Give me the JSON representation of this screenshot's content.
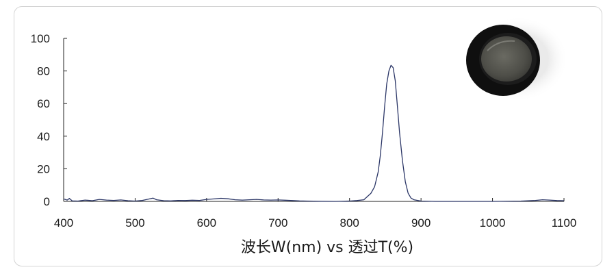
{
  "chart_data": {
    "type": "line",
    "title": "",
    "xlabel": "波长W(nm) vs 透过T(%)",
    "ylabel": "",
    "xlim": [
      400,
      1100
    ],
    "ylim": [
      0,
      100
    ],
    "x_ticks": [
      400,
      500,
      600,
      700,
      800,
      900,
      1000,
      1100
    ],
    "y_ticks": [
      0,
      20,
      40,
      60,
      80,
      100
    ],
    "grid": false,
    "legend": "none",
    "line_color": "#2a3566",
    "series": [
      {
        "x": [
          400,
          405,
          408,
          412,
          420,
          430,
          440,
          450,
          460,
          470,
          480,
          490,
          500,
          510,
          520,
          525,
          530,
          540,
          550,
          560,
          570,
          580,
          590,
          600,
          610,
          620,
          630,
          640,
          650,
          660,
          670,
          680,
          690,
          700,
          710,
          720,
          730,
          740,
          760,
          780,
          800,
          810,
          820,
          830,
          835,
          840,
          843,
          846,
          849,
          852,
          855,
          858,
          861,
          864,
          867,
          870,
          874,
          878,
          882,
          886,
          890,
          900,
          920,
          950,
          1000,
          1040,
          1060,
          1070,
          1080,
          1090,
          1100
        ],
        "y": [
          1.5,
          0.8,
          1.8,
          0.3,
          0.2,
          0.8,
          0.4,
          1.2,
          0.8,
          0.6,
          0.9,
          0.4,
          0.2,
          0.6,
          1.5,
          2.0,
          1.0,
          0.4,
          0.3,
          0.6,
          0.5,
          0.7,
          0.6,
          1.2,
          1.5,
          1.9,
          1.6,
          1.0,
          0.8,
          1.0,
          1.2,
          0.9,
          0.8,
          0.9,
          0.7,
          0.5,
          0.3,
          0.2,
          0.1,
          0.0,
          0.2,
          0.5,
          1.0,
          5.0,
          9.0,
          18.0,
          28.0,
          42.0,
          58.0,
          72.0,
          80.0,
          83.5,
          82.0,
          74.0,
          58.0,
          42.0,
          25.0,
          12.0,
          5.0,
          2.0,
          1.0,
          0.2,
          0.0,
          0.0,
          0.0,
          0.2,
          0.6,
          1.0,
          0.8,
          0.5,
          0.4
        ]
      }
    ]
  }
}
